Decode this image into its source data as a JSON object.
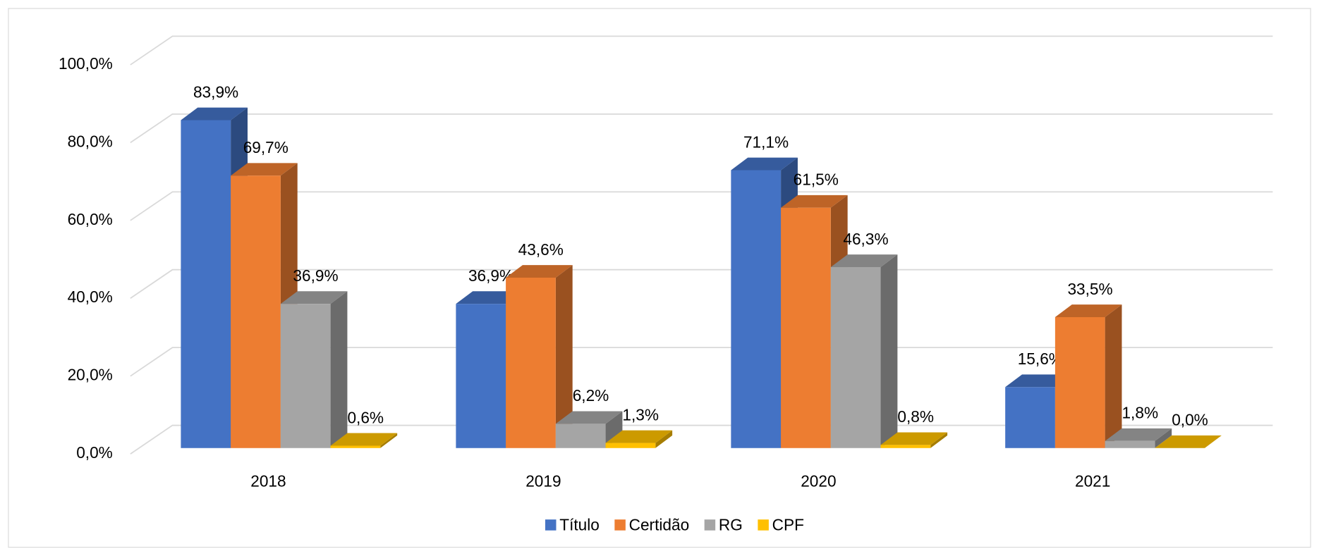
{
  "chart_data": {
    "type": "bar3d",
    "categories": [
      "2018",
      "2019",
      "2020",
      "2021"
    ],
    "series": [
      {
        "name": "Título",
        "color": "#4472c4",
        "values": [
          83.9,
          36.9,
          71.1,
          15.6
        ],
        "value_labels": [
          "83,9%",
          "36,9%",
          "71,1%",
          "15,6%"
        ]
      },
      {
        "name": "Certidão",
        "color": "#ed7d31",
        "values": [
          69.7,
          43.6,
          61.5,
          33.5
        ],
        "value_labels": [
          "69,7%",
          "43,6%",
          "61,5%",
          "33,5%"
        ]
      },
      {
        "name": "RG",
        "color": "#a5a5a5",
        "values": [
          36.9,
          6.2,
          46.3,
          1.8
        ],
        "value_labels": [
          "36,9%",
          "6,2%",
          "46,3%",
          "1,8%"
        ]
      },
      {
        "name": "CPF",
        "color": "#ffc000",
        "values": [
          0.6,
          1.3,
          0.8,
          0.0
        ],
        "value_labels": [
          "0,6%",
          "1,3%",
          "0,8%",
          "0,0%"
        ]
      }
    ],
    "ylim": [
      0,
      100
    ],
    "yticks": [
      {
        "value": 0,
        "label": "0,0%"
      },
      {
        "value": 20,
        "label": "20,0%"
      },
      {
        "value": 40,
        "label": "40,0%"
      },
      {
        "value": 60,
        "label": "60,0%"
      },
      {
        "value": 80,
        "label": "80,0%"
      },
      {
        "value": 100,
        "label": "100,0%"
      }
    ],
    "grid": true,
    "legend": "bottom"
  }
}
